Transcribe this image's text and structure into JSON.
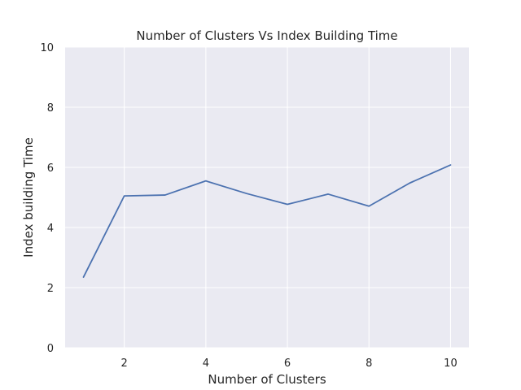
{
  "chart_data": {
    "type": "line",
    "title": "Number of Clusters Vs Index Building Time",
    "xlabel": "Number of Clusters",
    "ylabel": "Index building Time",
    "xlim": [
      0.55,
      10.45
    ],
    "ylim": [
      0,
      10
    ],
    "x_ticks": [
      2,
      4,
      6,
      8,
      10
    ],
    "y_ticks": [
      0,
      2,
      4,
      6,
      8,
      10
    ],
    "grid": true,
    "series": [
      {
        "x": [
          1,
          2,
          3,
          4,
          5,
          6,
          7,
          8,
          9,
          10
        ],
        "y": [
          2.35,
          5.05,
          5.08,
          5.55,
          5.13,
          4.77,
          5.11,
          4.71,
          5.48,
          6.08
        ],
        "color": "#4c72b0"
      }
    ]
  },
  "style": {
    "plot_background": "#eaeaf2",
    "grid_color": "#ffffff",
    "text_color": "#262626"
  }
}
